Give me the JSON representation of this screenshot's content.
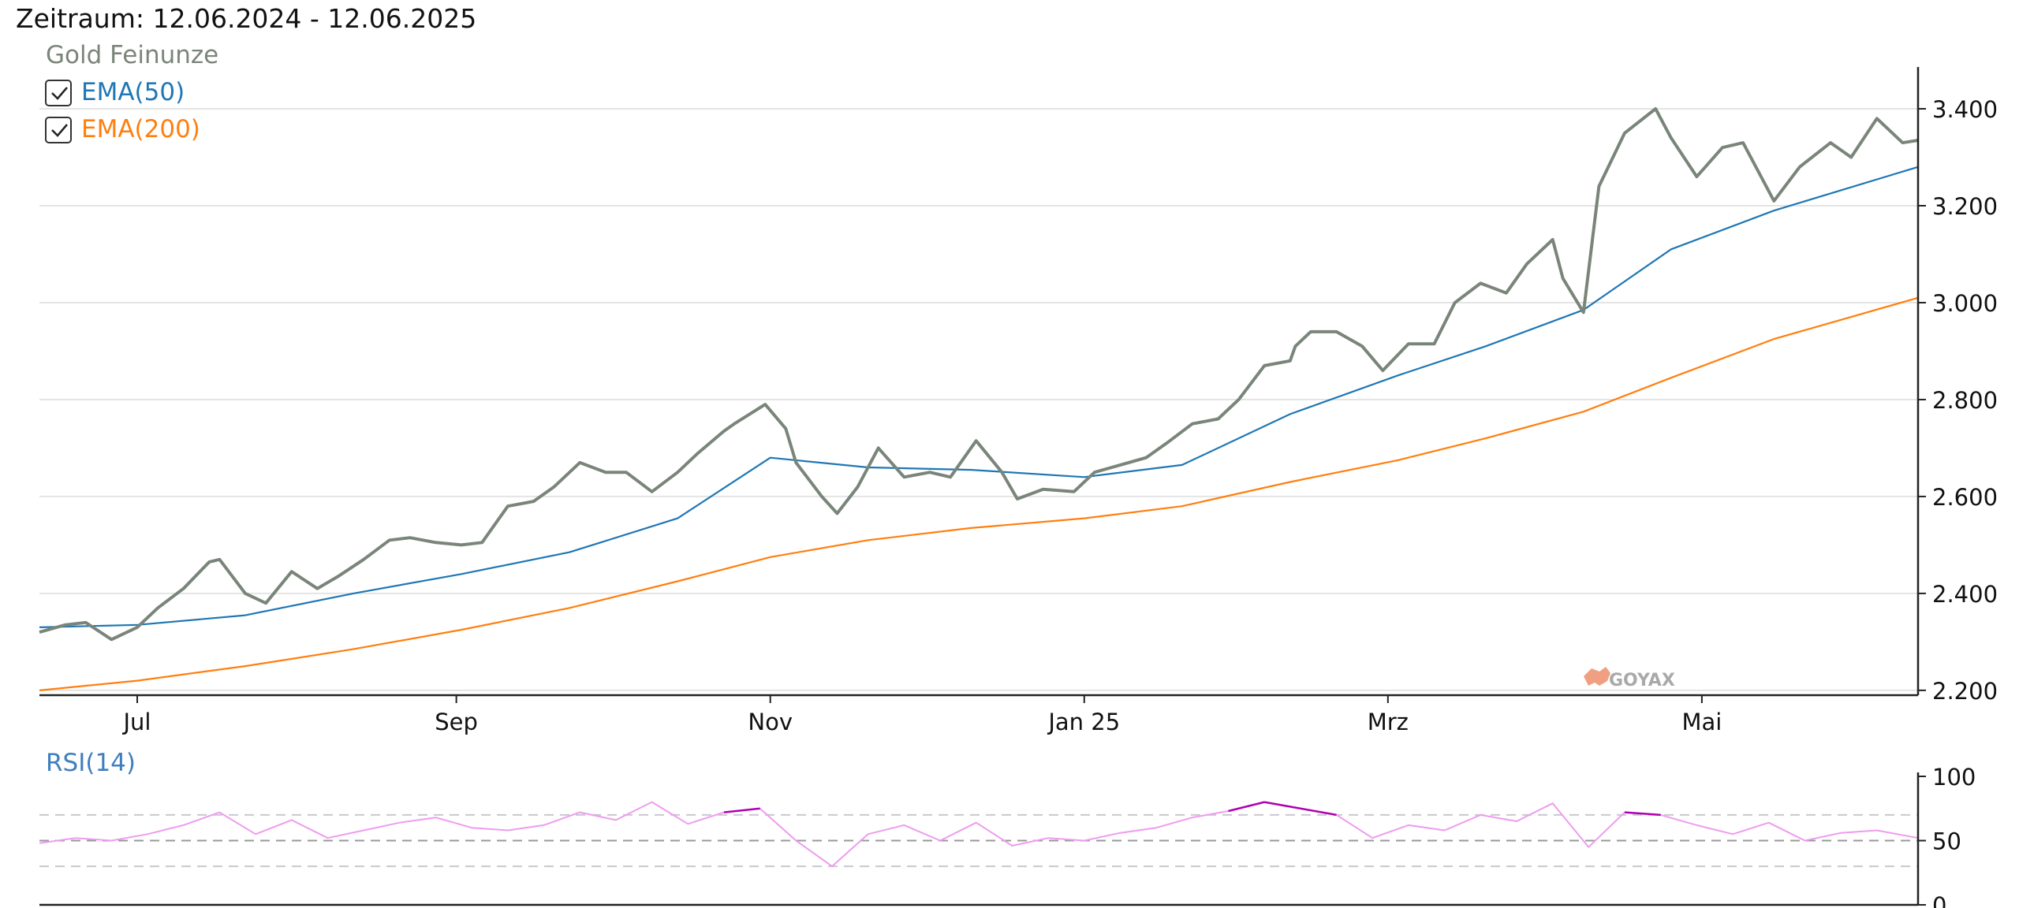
{
  "header": {
    "period": "Zeitraum: 12.06.2024 - 12.06.2025"
  },
  "watermark": "GOYAX",
  "colors": {
    "price": "#7a857a",
    "ema50": "#1f77b4",
    "ema200": "#ff7f0e",
    "rsi": "#ee9cee",
    "rsi_extreme": "#b000b0",
    "grid": "#e4e4e4",
    "axis": "#222222"
  },
  "chart_data": [
    {
      "type": "line",
      "title": "",
      "legend": [
        {
          "name": "Gold Feinunze",
          "checkbox": false
        },
        {
          "name": "EMA(50)",
          "checkbox": true,
          "checked": true
        },
        {
          "name": "EMA(200)",
          "checkbox": true,
          "checked": true
        }
      ],
      "legend_placement": "top-left",
      "x_range": [
        "2024-06-12",
        "2025-06-12"
      ],
      "x_ticks": [
        {
          "date": "2024-07-01",
          "label": "Jul"
        },
        {
          "date": "2024-09-01",
          "label": "Sep"
        },
        {
          "date": "2024-11-01",
          "label": "Nov"
        },
        {
          "date": "2025-01-01",
          "label": "Jan 25"
        },
        {
          "date": "2025-03-01",
          "label": "Mrz"
        },
        {
          "date": "2025-05-01",
          "label": "Mai"
        }
      ],
      "ylim": [
        2190,
        3470
      ],
      "y_ticks": [
        2200,
        2400,
        2600,
        2800,
        3000,
        3200,
        3400
      ],
      "y_tick_labels": [
        "2.200",
        "2.400",
        "2.600",
        "2.800",
        "3.000",
        "3.200",
        "3.400"
      ],
      "y_axis_side": "right",
      "grid": "horizontal",
      "series": [
        {
          "name": "Gold Feinunze",
          "x": [
            "2024-06-12",
            "2024-06-17",
            "2024-06-21",
            "2024-06-26",
            "2024-07-01",
            "2024-07-05",
            "2024-07-10",
            "2024-07-15",
            "2024-07-17",
            "2024-07-22",
            "2024-07-26",
            "2024-07-31",
            "2024-08-05",
            "2024-08-09",
            "2024-08-14",
            "2024-08-19",
            "2024-08-23",
            "2024-08-28",
            "2024-09-02",
            "2024-09-06",
            "2024-09-11",
            "2024-09-16",
            "2024-09-20",
            "2024-09-25",
            "2024-09-30",
            "2024-10-04",
            "2024-10-09",
            "2024-10-14",
            "2024-10-18",
            "2024-10-23",
            "2024-10-25",
            "2024-10-31",
            "2024-11-04",
            "2024-11-06",
            "2024-11-11",
            "2024-11-14",
            "2024-11-18",
            "2024-11-22",
            "2024-11-27",
            "2024-12-02",
            "2024-12-06",
            "2024-12-11",
            "2024-12-16",
            "2024-12-19",
            "2024-12-24",
            "2024-12-30",
            "2025-01-03",
            "2025-01-08",
            "2025-01-13",
            "2025-01-17",
            "2025-01-22",
            "2025-01-27",
            "2025-01-31",
            "2025-02-05",
            "2025-02-10",
            "2025-02-11",
            "2025-02-14",
            "2025-02-19",
            "2025-02-24",
            "2025-02-28",
            "2025-03-05",
            "2025-03-10",
            "2025-03-14",
            "2025-03-19",
            "2025-03-24",
            "2025-03-28",
            "2025-04-02",
            "2025-04-04",
            "2025-04-08",
            "2025-04-11",
            "2025-04-16",
            "2025-04-22",
            "2025-04-25",
            "2025-04-30",
            "2025-05-05",
            "2025-05-09",
            "2025-05-15",
            "2025-05-20",
            "2025-05-26",
            "2025-05-30",
            "2025-06-04",
            "2025-06-09",
            "2025-06-12"
          ],
          "values": [
            2320,
            2335,
            2340,
            2305,
            2330,
            2370,
            2410,
            2465,
            2470,
            2400,
            2380,
            2445,
            2410,
            2435,
            2470,
            2510,
            2515,
            2505,
            2500,
            2505,
            2580,
            2590,
            2620,
            2670,
            2650,
            2650,
            2610,
            2650,
            2690,
            2735,
            2750,
            2790,
            2740,
            2670,
            2600,
            2565,
            2620,
            2700,
            2640,
            2650,
            2640,
            2715,
            2650,
            2595,
            2615,
            2610,
            2650,
            2665,
            2680,
            2710,
            2750,
            2760,
            2800,
            2870,
            2880,
            2910,
            2940,
            2940,
            2910,
            2860,
            2915,
            2915,
            3000,
            3040,
            3020,
            3080,
            3130,
            3050,
            2980,
            3240,
            3350,
            3400,
            3340,
            3260,
            3320,
            3330,
            3210,
            3280,
            3330,
            3300,
            3380,
            3330,
            3335
          ],
          "color_key": "price"
        },
        {
          "name": "EMA(50)",
          "x": [
            "2024-06-12",
            "2024-07-01",
            "2024-07-22",
            "2024-08-12",
            "2024-09-02",
            "2024-09-23",
            "2024-10-14",
            "2024-11-01",
            "2024-11-20",
            "2024-12-10",
            "2025-01-01",
            "2025-01-20",
            "2025-02-10",
            "2025-03-03",
            "2025-03-20",
            "2025-04-08",
            "2025-04-25",
            "2025-05-15",
            "2025-06-12"
          ],
          "values": [
            2330,
            2335,
            2355,
            2400,
            2440,
            2485,
            2555,
            2680,
            2660,
            2655,
            2640,
            2665,
            2770,
            2850,
            2910,
            2985,
            3110,
            3190,
            3280
          ],
          "color_key": "ema50"
        },
        {
          "name": "EMA(200)",
          "x": [
            "2024-06-12",
            "2024-07-01",
            "2024-07-22",
            "2024-08-12",
            "2024-09-02",
            "2024-09-23",
            "2024-10-14",
            "2024-11-01",
            "2024-11-20",
            "2024-12-10",
            "2025-01-01",
            "2025-01-20",
            "2025-02-10",
            "2025-03-03",
            "2025-03-20",
            "2025-04-08",
            "2025-04-25",
            "2025-05-15",
            "2025-06-12"
          ],
          "values": [
            2200,
            2220,
            2250,
            2285,
            2325,
            2370,
            2425,
            2475,
            2510,
            2535,
            2555,
            2580,
            2630,
            2675,
            2720,
            2775,
            2845,
            2925,
            3010
          ],
          "color_key": "ema200"
        }
      ]
    },
    {
      "type": "line",
      "title": "RSI(14)",
      "ylim": [
        0,
        100
      ],
      "y_ticks": [
        0,
        50,
        100
      ],
      "y_tick_labels": [
        "0",
        "50",
        "100"
      ],
      "y_axis_side": "right",
      "reference_lines": [
        30,
        50,
        70
      ],
      "series": [
        {
          "name": "RSI(14)",
          "x": [
            "2024-06-12",
            "2024-06-19",
            "2024-06-26",
            "2024-07-03",
            "2024-07-10",
            "2024-07-17",
            "2024-07-24",
            "2024-07-31",
            "2024-08-07",
            "2024-08-14",
            "2024-08-21",
            "2024-08-28",
            "2024-09-04",
            "2024-09-11",
            "2024-09-18",
            "2024-09-25",
            "2024-10-02",
            "2024-10-09",
            "2024-10-16",
            "2024-10-23",
            "2024-10-30",
            "2024-11-06",
            "2024-11-13",
            "2024-11-20",
            "2024-11-27",
            "2024-12-04",
            "2024-12-11",
            "2024-12-18",
            "2024-12-25",
            "2025-01-01",
            "2025-01-08",
            "2025-01-15",
            "2025-01-22",
            "2025-01-29",
            "2025-02-05",
            "2025-02-12",
            "2025-02-19",
            "2025-02-26",
            "2025-03-05",
            "2025-03-12",
            "2025-03-19",
            "2025-03-26",
            "2025-04-02",
            "2025-04-09",
            "2025-04-16",
            "2025-04-23",
            "2025-04-30",
            "2025-05-07",
            "2025-05-14",
            "2025-05-21",
            "2025-05-28",
            "2025-06-04",
            "2025-06-12"
          ],
          "values": [
            48,
            52,
            50,
            55,
            62,
            72,
            55,
            66,
            52,
            58,
            64,
            68,
            60,
            58,
            62,
            72,
            66,
            80,
            63,
            72,
            75,
            50,
            30,
            55,
            62,
            50,
            64,
            46,
            52,
            50,
            56,
            60,
            68,
            73,
            80,
            75,
            70,
            52,
            62,
            58,
            70,
            65,
            79,
            45,
            72,
            70,
            62,
            55,
            64,
            50,
            56,
            58,
            52
          ],
          "color_key": "rsi"
        }
      ]
    }
  ]
}
